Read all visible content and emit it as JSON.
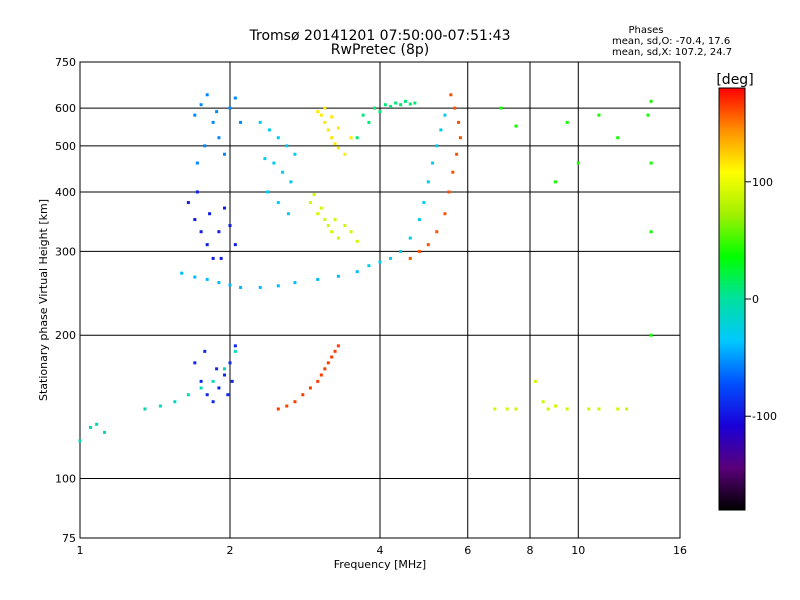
{
  "chart_data": {
    "type": "scatter",
    "title": "Tromsø 20141201 07:50:00-07:51:43",
    "subtitle": "RwPretec (8p)",
    "xlabel": "Frequency [MHz]",
    "ylabel": "Stationary phase Virtual Height [km]",
    "x_scale": "log",
    "y_scale": "log",
    "xlim": [
      1,
      16
    ],
    "ylim": [
      75,
      750
    ],
    "x_ticks": [
      "1",
      "2",
      "4",
      "6",
      "8",
      "10",
      "16"
    ],
    "x_gridlines": [
      2,
      4,
      6,
      8,
      10
    ],
    "y_ticks": [
      "75",
      "100",
      "200",
      "300",
      "400",
      "500",
      "600",
      "750"
    ],
    "y_gridlines": [
      100,
      200,
      300,
      400,
      500,
      600
    ],
    "grid": true,
    "stats_title": "Phases",
    "stats_line1": "mean, sd,O: -70.4, 17.6",
    "stats_line2": "mean, sd,X: 107.2, 24.7",
    "colorbar": {
      "label": "[deg]",
      "range": [
        -180,
        180
      ],
      "ticks": [
        "100",
        "0",
        "-100"
      ],
      "colors": [
        "#000000",
        "#5a007a",
        "#1a00d8",
        "#0050ff",
        "#00c8ff",
        "#00e0a0",
        "#00ff00",
        "#a0f000",
        "#ffff00",
        "#ff9000",
        "#ff0000"
      ]
    },
    "series": [
      {
        "values": [
          [
            1.0,
            120
          ],
          [
            1.05,
            128
          ],
          [
            1.12,
            125
          ],
          [
            1.08,
            130
          ],
          [
            1.35,
            140
          ],
          [
            1.45,
            142
          ],
          [
            1.55,
            145
          ],
          [
            1.65,
            150
          ],
          [
            1.75,
            155
          ],
          [
            1.85,
            160
          ],
          [
            1.95,
            170
          ],
          [
            2.05,
            185
          ]
        ],
        "phase": -10
      },
      {
        "values": [
          [
            1.7,
            580
          ],
          [
            1.75,
            610
          ],
          [
            1.8,
            640
          ],
          [
            1.85,
            560
          ],
          [
            1.9,
            520
          ],
          [
            1.95,
            480
          ],
          [
            2.0,
            600
          ],
          [
            2.05,
            630
          ],
          [
            2.1,
            560
          ],
          [
            1.72,
            460
          ],
          [
            1.78,
            500
          ],
          [
            1.88,
            590
          ]
        ],
        "phase": -55
      },
      {
        "values": [
          [
            1.6,
            270
          ],
          [
            1.7,
            265
          ],
          [
            1.8,
            262
          ],
          [
            1.9,
            258
          ],
          [
            2.0,
            255
          ],
          [
            2.1,
            252
          ],
          [
            2.3,
            252
          ],
          [
            2.5,
            254
          ],
          [
            2.7,
            258
          ],
          [
            3.0,
            262
          ],
          [
            3.3,
            266
          ],
          [
            3.6,
            272
          ]
        ],
        "phase": -40
      },
      {
        "values": [
          [
            1.65,
            380
          ],
          [
            1.7,
            350
          ],
          [
            1.75,
            330
          ],
          [
            1.8,
            310
          ],
          [
            1.85,
            290
          ],
          [
            1.9,
            330
          ],
          [
            1.95,
            370
          ],
          [
            2.0,
            340
          ],
          [
            2.05,
            310
          ],
          [
            1.72,
            400
          ],
          [
            1.82,
            360
          ],
          [
            1.92,
            290
          ]
        ],
        "phase": -95
      },
      {
        "values": [
          [
            1.75,
            160
          ],
          [
            1.8,
            150
          ],
          [
            1.85,
            145
          ],
          [
            1.9,
            155
          ],
          [
            1.95,
            165
          ],
          [
            2.0,
            175
          ],
          [
            2.05,
            190
          ],
          [
            1.7,
            175
          ],
          [
            1.78,
            185
          ],
          [
            1.88,
            170
          ],
          [
            1.98,
            150
          ],
          [
            2.02,
            160
          ]
        ],
        "phase": -90
      },
      {
        "values": [
          [
            2.3,
            560
          ],
          [
            2.4,
            540
          ],
          [
            2.5,
            520
          ],
          [
            2.6,
            500
          ],
          [
            2.7,
            480
          ],
          [
            2.35,
            470
          ],
          [
            2.45,
            460
          ],
          [
            2.55,
            440
          ],
          [
            2.65,
            420
          ],
          [
            2.38,
            400
          ],
          [
            2.5,
            380
          ],
          [
            2.62,
            360
          ]
        ],
        "phase": -30
      },
      {
        "values": [
          [
            3.0,
            590
          ],
          [
            3.05,
            580
          ],
          [
            3.1,
            560
          ],
          [
            3.15,
            540
          ],
          [
            3.2,
            520
          ],
          [
            3.25,
            505
          ],
          [
            3.3,
            495
          ],
          [
            3.4,
            480
          ],
          [
            3.1,
            600
          ],
          [
            3.2,
            575
          ],
          [
            3.3,
            545
          ],
          [
            3.5,
            520
          ]
        ],
        "phase": 115
      },
      {
        "values": [
          [
            2.9,
            380
          ],
          [
            3.0,
            360
          ],
          [
            3.1,
            350
          ],
          [
            3.15,
            340
          ],
          [
            3.2,
            330
          ],
          [
            3.3,
            320
          ],
          [
            3.4,
            340
          ],
          [
            3.5,
            330
          ],
          [
            3.6,
            315
          ],
          [
            2.95,
            395
          ],
          [
            3.05,
            370
          ],
          [
            3.25,
            350
          ]
        ],
        "phase": 90
      },
      {
        "values": [
          [
            3.6,
            520
          ],
          [
            3.8,
            560
          ],
          [
            4.0,
            590
          ],
          [
            4.2,
            605
          ],
          [
            4.4,
            610
          ],
          [
            4.6,
            612
          ],
          [
            3.7,
            580
          ],
          [
            3.9,
            600
          ],
          [
            4.1,
            610
          ],
          [
            4.3,
            615
          ],
          [
            4.5,
            620
          ],
          [
            4.7,
            615
          ]
        ],
        "phase": 10
      },
      {
        "values": [
          [
            3.8,
            280
          ],
          [
            4.0,
            285
          ],
          [
            4.2,
            290
          ],
          [
            4.4,
            300
          ],
          [
            4.6,
            320
          ],
          [
            4.8,
            350
          ],
          [
            4.9,
            380
          ],
          [
            5.0,
            420
          ],
          [
            5.1,
            460
          ],
          [
            5.2,
            500
          ],
          [
            5.3,
            540
          ],
          [
            5.4,
            580
          ]
        ],
        "phase": -30
      },
      {
        "values": [
          [
            4.6,
            290
          ],
          [
            4.8,
            300
          ],
          [
            5.0,
            310
          ],
          [
            5.2,
            330
          ],
          [
            5.4,
            360
          ],
          [
            5.5,
            400
          ],
          [
            5.6,
            440
          ],
          [
            5.7,
            480
          ],
          [
            5.8,
            520
          ],
          [
            5.75,
            560
          ],
          [
            5.65,
            600
          ],
          [
            5.55,
            640
          ]
        ],
        "phase": 160
      },
      {
        "values": [
          [
            2.5,
            140
          ],
          [
            2.6,
            142
          ],
          [
            2.7,
            145
          ],
          [
            2.8,
            150
          ],
          [
            2.9,
            155
          ],
          [
            3.0,
            160
          ],
          [
            3.05,
            165
          ],
          [
            3.1,
            170
          ],
          [
            3.15,
            175
          ],
          [
            3.2,
            180
          ],
          [
            3.25,
            185
          ],
          [
            3.3,
            190
          ]
        ],
        "phase": 165
      },
      {
        "values": [
          [
            8.5,
            145
          ],
          [
            8.7,
            140
          ],
          [
            9.0,
            142
          ],
          [
            9.5,
            140
          ],
          [
            10.5,
            140
          ],
          [
            11.0,
            140
          ],
          [
            8.2,
            160
          ],
          [
            7.5,
            140
          ],
          [
            7.2,
            140
          ],
          [
            6.8,
            140
          ],
          [
            12.0,
            140
          ],
          [
            12.5,
            140
          ]
        ],
        "phase": 90
      },
      {
        "values": [
          [
            14.0,
            620
          ],
          [
            13.8,
            580
          ],
          [
            14.0,
            460
          ],
          [
            14.0,
            330
          ],
          [
            12.0,
            520
          ],
          [
            11.0,
            580
          ],
          [
            9.5,
            560
          ],
          [
            10.0,
            460
          ],
          [
            9.0,
            420
          ],
          [
            7.0,
            600
          ],
          [
            7.5,
            550
          ],
          [
            14.0,
            200
          ]
        ],
        "phase": 40
      }
    ]
  }
}
